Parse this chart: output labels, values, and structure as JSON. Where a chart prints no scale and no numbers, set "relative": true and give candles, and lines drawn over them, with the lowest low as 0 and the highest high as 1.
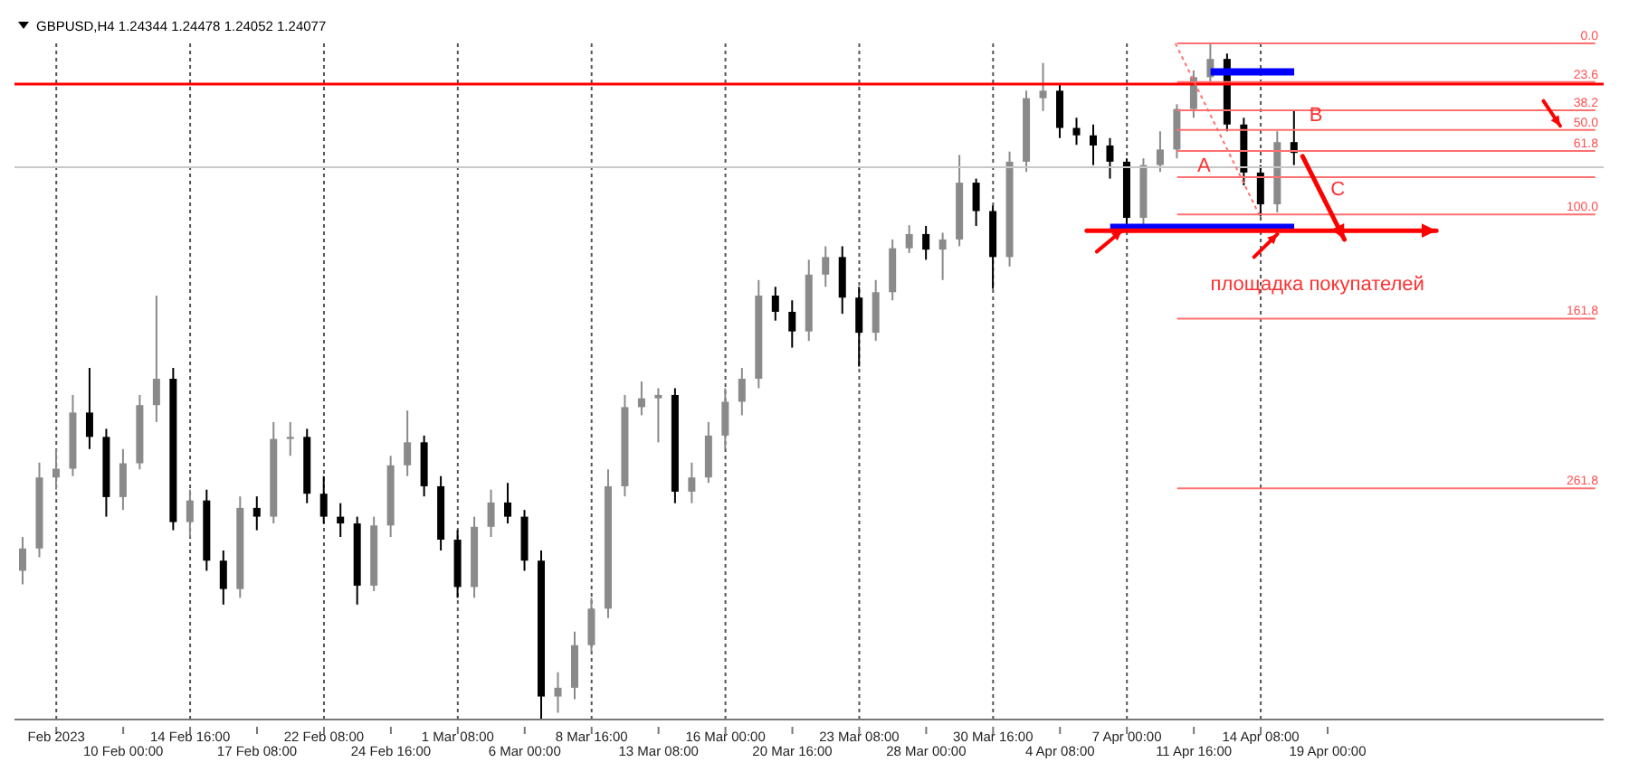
{
  "chart_data": {
    "type": "candlestick",
    "title": "GBPUSD,H4  1.24344 1.24478 1.24052 1.24077",
    "relative": true,
    "grid": "x",
    "categories": [
      null,
      null,
      "Feb 2023",
      null,
      null,
      null,
      "10 Feb 00:00",
      null,
      null,
      null,
      "14 Feb 16:00",
      null,
      null,
      null,
      "17 Feb 08:00",
      null,
      null,
      null,
      "22 Feb 08:00",
      null,
      null,
      null,
      "24 Feb 16:00",
      null,
      null,
      null,
      "1 Mar 08:00",
      null,
      null,
      null,
      "6 Mar 00:00",
      null,
      null,
      null,
      "8 Mar 16:00",
      null,
      null,
      null,
      "13 Mar 08:00",
      null,
      null,
      null,
      "16 Mar 00:00",
      null,
      null,
      null,
      "20 Mar 16:00",
      null,
      null,
      null,
      "23 Mar 08:00",
      null,
      null,
      null,
      "28 Mar 00:00",
      null,
      null,
      null,
      "30 Mar 16:00",
      null,
      null,
      null,
      "4 Apr 08:00",
      null,
      null,
      null,
      "7 Apr 00:00",
      null,
      null,
      null,
      "11 Apr 16:00",
      null,
      null,
      null,
      "14 Apr 08:00",
      null,
      null,
      null,
      "19 Apr 00:00",
      null,
      null,
      null,
      null,
      null,
      null,
      null,
      null,
      null,
      null,
      null,
      null,
      null,
      null,
      null,
      null
    ],
    "ohlc": [
      [
        0.22,
        0.27,
        0.2,
        0.253
      ],
      [
        0.253,
        0.38,
        0.24,
        0.358
      ],
      [
        0.358,
        0.4,
        0.34,
        0.371
      ],
      [
        0.371,
        0.48,
        0.36,
        0.454
      ],
      [
        0.454,
        0.52,
        0.4,
        0.418
      ],
      [
        0.418,
        0.43,
        0.3,
        0.329
      ],
      [
        0.329,
        0.4,
        0.31,
        0.379
      ],
      [
        0.379,
        0.48,
        0.37,
        0.465
      ],
      [
        0.465,
        0.627,
        0.44,
        0.504
      ],
      [
        0.504,
        0.52,
        0.28,
        0.292
      ],
      [
        0.292,
        0.34,
        0.27,
        0.324
      ],
      [
        0.324,
        0.34,
        0.22,
        0.235
      ],
      [
        0.235,
        0.25,
        0.17,
        0.193
      ],
      [
        0.193,
        0.33,
        0.18,
        0.313
      ],
      [
        0.313,
        0.33,
        0.28,
        0.3
      ],
      [
        0.3,
        0.44,
        0.29,
        0.415
      ],
      [
        0.415,
        0.44,
        0.39,
        0.418
      ],
      [
        0.418,
        0.43,
        0.32,
        0.334
      ],
      [
        0.334,
        0.36,
        0.29,
        0.3
      ],
      [
        0.3,
        0.32,
        0.27,
        0.29
      ],
      [
        0.29,
        0.3,
        0.17,
        0.198
      ],
      [
        0.198,
        0.3,
        0.19,
        0.287
      ],
      [
        0.287,
        0.39,
        0.27,
        0.376
      ],
      [
        0.376,
        0.457,
        0.36,
        0.41
      ],
      [
        0.41,
        0.42,
        0.33,
        0.345
      ],
      [
        0.345,
        0.36,
        0.25,
        0.266
      ],
      [
        0.266,
        0.28,
        0.18,
        0.196
      ],
      [
        0.196,
        0.3,
        0.18,
        0.285
      ],
      [
        0.285,
        0.34,
        0.27,
        0.321
      ],
      [
        0.321,
        0.35,
        0.29,
        0.3
      ],
      [
        0.3,
        0.31,
        0.22,
        0.235
      ],
      [
        0.235,
        0.25,
        0.0,
        0.034
      ],
      [
        0.034,
        0.07,
        0.01,
        0.047
      ],
      [
        0.047,
        0.13,
        0.03,
        0.11
      ],
      [
        0.11,
        0.18,
        0.1,
        0.164
      ],
      [
        0.164,
        0.37,
        0.15,
        0.345
      ],
      [
        0.345,
        0.48,
        0.33,
        0.462
      ],
      [
        0.462,
        0.5,
        0.45,
        0.475
      ],
      [
        0.475,
        0.49,
        0.41,
        0.48
      ],
      [
        0.48,
        0.49,
        0.32,
        0.337
      ],
      [
        0.337,
        0.38,
        0.32,
        0.358
      ],
      [
        0.358,
        0.44,
        0.35,
        0.42
      ],
      [
        0.42,
        0.49,
        0.4,
        0.47
      ],
      [
        0.47,
        0.52,
        0.45,
        0.504
      ],
      [
        0.504,
        0.65,
        0.49,
        0.627
      ],
      [
        0.627,
        0.64,
        0.59,
        0.603
      ],
      [
        0.603,
        0.62,
        0.55,
        0.574
      ],
      [
        0.574,
        0.68,
        0.56,
        0.658
      ],
      [
        0.658,
        0.7,
        0.64,
        0.684
      ],
      [
        0.684,
        0.7,
        0.6,
        0.624
      ],
      [
        0.624,
        0.64,
        0.522,
        0.572
      ],
      [
        0.572,
        0.65,
        0.56,
        0.632
      ],
      [
        0.632,
        0.71,
        0.62,
        0.697
      ],
      [
        0.697,
        0.731,
        0.69,
        0.718
      ],
      [
        0.718,
        0.73,
        0.68,
        0.695
      ],
      [
        0.695,
        0.72,
        0.65,
        0.71
      ],
      [
        0.71,
        0.835,
        0.7,
        0.794
      ],
      [
        0.794,
        0.8,
        0.73,
        0.752
      ],
      [
        0.752,
        0.76,
        0.637,
        0.684
      ],
      [
        0.684,
        0.84,
        0.67,
        0.825
      ],
      [
        0.825,
        0.93,
        0.81,
        0.919
      ],
      [
        0.919,
        0.971,
        0.9,
        0.93
      ],
      [
        0.93,
        0.94,
        0.86,
        0.875
      ],
      [
        0.875,
        0.89,
        0.85,
        0.864
      ],
      [
        0.864,
        0.88,
        0.82,
        0.849
      ],
      [
        0.849,
        0.86,
        0.8,
        0.825
      ],
      [
        0.825,
        0.83,
        0.731,
        0.742
      ],
      [
        0.742,
        0.83,
        0.73,
        0.82
      ],
      [
        0.82,
        0.87,
        0.81,
        0.843
      ],
      [
        0.843,
        0.91,
        0.83,
        0.903
      ],
      [
        0.903,
        0.96,
        0.89,
        0.95
      ],
      [
        0.95,
        1.0,
        0.94,
        0.977
      ],
      [
        0.977,
        0.985,
        0.87,
        0.88
      ],
      [
        0.88,
        0.89,
        0.79,
        0.809
      ],
      [
        0.809,
        0.82,
        0.744,
        0.762
      ],
      [
        0.762,
        0.87,
        0.75,
        0.854
      ],
      [
        0.854,
        0.901,
        0.82,
        0.838
      ],
      null,
      null,
      null,
      null,
      null,
      null,
      null,
      null,
      null,
      null,
      null,
      null,
      null,
      null,
      null,
      null,
      null,
      null
    ],
    "ref_lines": [
      {
        "axis": "y",
        "value": 1.0,
        "color": "#ff7070"
      },
      {
        "axis": "y",
        "value": 0.943,
        "color": "#ff7070"
      },
      {
        "axis": "y",
        "value": 0.901,
        "color": "#ff7070"
      },
      {
        "axis": "y",
        "value": 0.872,
        "color": "#ff7070"
      },
      {
        "axis": "y",
        "value": 0.841,
        "color": "#ff7070"
      },
      {
        "axis": "y",
        "value": 0.747,
        "color": "#ff7070"
      },
      {
        "axis": "y",
        "value": 0.593,
        "color": "#ff7070"
      },
      {
        "axis": "y",
        "value": 0.342,
        "color": "#ff7070"
      },
      {
        "axis": "y",
        "value": 0.802,
        "color": "#ff7070"
      },
      {
        "axis": "y",
        "value": 0.94,
        "color": "#ff0000"
      },
      {
        "axis": "y",
        "value": 0.817,
        "color": "#c8c8c8"
      },
      {
        "axis": "y",
        "value": 0.728,
        "color": "#0000ff"
      }
    ],
    "annotations": [
      "A",
      "B",
      "C",
      "площадка покупателей",
      {
        "text": "0.0",
        "y": 1.0
      },
      {
        "text": "23.6",
        "y": 0.943
      },
      {
        "text": "38.2",
        "y": 0.901
      },
      {
        "text": "50.0",
        "y": 0.872
      },
      {
        "text": "61.8",
        "y": 0.841
      },
      {
        "text": "100.0",
        "y": 0.747
      },
      {
        "text": "161.8",
        "y": 0.593
      },
      {
        "text": "261.8",
        "y": 0.342
      }
    ]
  }
}
